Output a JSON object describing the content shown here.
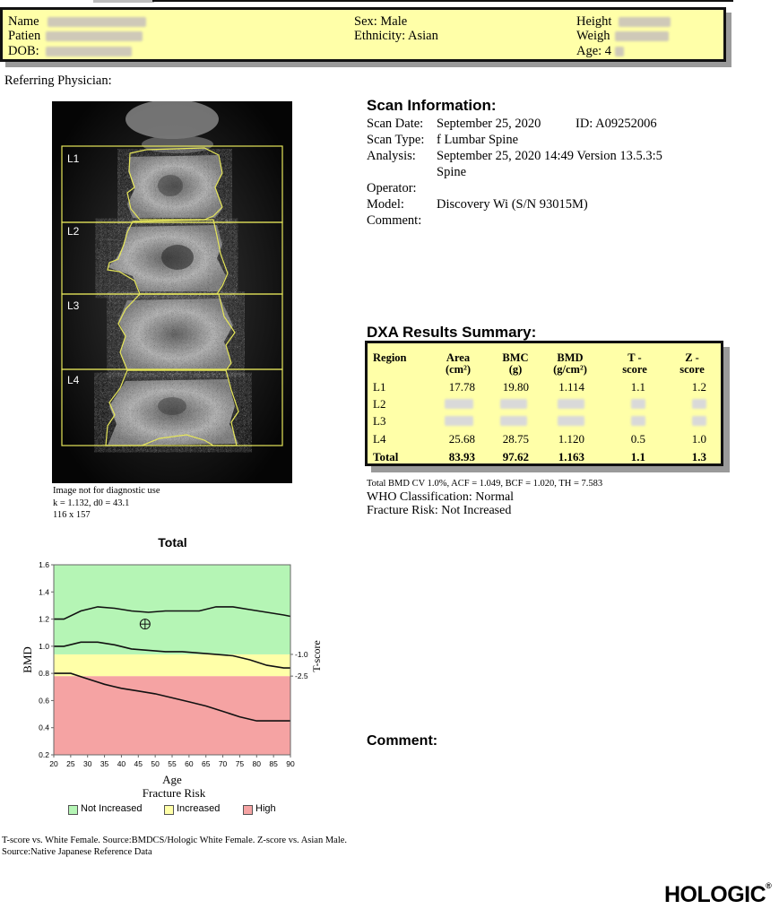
{
  "patient": {
    "name_label": "Name",
    "patient_id_label": "Patien",
    "dob_label": "DOB:",
    "sex": "Sex: Male",
    "ethnicity": "Ethnicity: Asian",
    "height_label": "Height",
    "weight_label": "Weigh",
    "age": "Age: 4"
  },
  "referring_physician": "Referring Physician:",
  "scan_image": {
    "regions": [
      "L1",
      "L2",
      "L3",
      "L4"
    ],
    "note_lines": [
      "Image not for diagnostic use",
      "k = 1.132, d0 = 43.1",
      "116 x 157"
    ]
  },
  "scan_info": {
    "title": "Scan Information:",
    "rows": [
      {
        "label": "Scan Date:",
        "value": "September 25, 2020",
        "extra": "ID:  A09252006"
      },
      {
        "label": "Scan Type:",
        "value": "f Lumbar Spine"
      },
      {
        "label": "Analysis:",
        "value": "September 25, 2020 14:49 Version 13.5.3:5"
      },
      {
        "label": "",
        "value": "Spine"
      },
      {
        "label": "Operator:",
        "value": ""
      },
      {
        "label": "Model:",
        "value": "Discovery Wi (S/N 93015M)"
      },
      {
        "label": "Comment:",
        "value": ""
      }
    ]
  },
  "dxa": {
    "title": "DXA Results Summary:",
    "headers": [
      {
        "l1": "Region",
        "l2": ""
      },
      {
        "l1": "Area",
        "l2": "(cm²)"
      },
      {
        "l1": "BMC",
        "l2": "(g)"
      },
      {
        "l1": "BMD",
        "l2": "(g/cm²)"
      },
      {
        "l1": "T -",
        "l2": "score"
      },
      {
        "l1": "Z -",
        "l2": "score"
      }
    ],
    "rows": [
      {
        "region": "L1",
        "area": "17.78",
        "bmc": "19.80",
        "bmd": "1.114",
        "t": "1.1",
        "z": "1.2"
      },
      {
        "region": "L2",
        "area": "",
        "bmc": "",
        "bmd": "",
        "t": "",
        "z": ""
      },
      {
        "region": "L3",
        "area": "",
        "bmc": "",
        "bmd": "",
        "t": "",
        "z": ""
      },
      {
        "region": "L4",
        "area": "25.68",
        "bmc": "28.75",
        "bmd": "1.120",
        "t": "0.5",
        "z": "1.0"
      },
      {
        "region": "Total",
        "area": "83.93",
        "bmc": "97.62",
        "bmd": "1.163",
        "t": "1.1",
        "z": "1.3"
      }
    ],
    "cv_line": "Total BMD CV 1.0%, ACF = 1.049, BCF = 1.020, TH = 7.583",
    "who": "WHO Classification: Normal",
    "fracture_risk": "Fracture Risk: Not Increased"
  },
  "chart_data": {
    "type": "line",
    "title": "Total",
    "xlabel": "Age",
    "x_sublabel": "Fracture Risk",
    "ylabel": "BMD",
    "y2label": "T-score",
    "xlim": [
      20,
      90
    ],
    "ylim": [
      0.2,
      1.6
    ],
    "x_ticks": [
      "20",
      "25",
      "30",
      "35",
      "40",
      "45",
      "50",
      "55",
      "60",
      "65",
      "70",
      "75",
      "80",
      "85",
      "90"
    ],
    "y_ticks": [
      "0.2",
      "0.4",
      "0.6",
      "0.8",
      "1.0",
      "1.2",
      "1.4",
      "1.6"
    ],
    "y2_ticks": [
      {
        "label": "-1.0",
        "bmd": 0.94
      },
      {
        "label": "-2.5",
        "bmd": 0.78
      }
    ],
    "bands": [
      {
        "name": "High",
        "from": 0.2,
        "to": 0.78,
        "color": "#f5a3a3"
      },
      {
        "name": "Increased",
        "from": 0.78,
        "to": 0.94,
        "color": "#ffffa8"
      },
      {
        "name": "Not Increased",
        "from": 0.94,
        "to": 1.6,
        "color": "#b5f5b5"
      }
    ],
    "series": [
      {
        "x": [
          20,
          23,
          28,
          33,
          38,
          43,
          48,
          53,
          58,
          63,
          68,
          73,
          78,
          83,
          88,
          90
        ],
        "values": [
          1.2,
          1.2,
          1.26,
          1.29,
          1.28,
          1.26,
          1.25,
          1.26,
          1.26,
          1.26,
          1.29,
          1.29,
          1.27,
          1.25,
          1.23,
          1.22
        ]
      },
      {
        "x": [
          20,
          23,
          28,
          33,
          38,
          43,
          48,
          53,
          58,
          63,
          68,
          73,
          78,
          83,
          88,
          90
        ],
        "values": [
          1.0,
          1.0,
          1.03,
          1.03,
          1.01,
          0.98,
          0.97,
          0.96,
          0.96,
          0.95,
          0.94,
          0.93,
          0.9,
          0.86,
          0.84,
          0.84
        ]
      },
      {
        "x": [
          20,
          25,
          30,
          35,
          40,
          45,
          50,
          55,
          60,
          65,
          70,
          75,
          80,
          85,
          90
        ],
        "values": [
          0.8,
          0.8,
          0.76,
          0.72,
          0.69,
          0.67,
          0.65,
          0.62,
          0.59,
          0.56,
          0.52,
          0.48,
          0.45,
          0.45,
          0.45
        ]
      }
    ],
    "patient_point": {
      "x": 47,
      "y": 1.163
    },
    "legend": [
      {
        "label": "Not Increased",
        "color": "#b5f5b5"
      },
      {
        "label": "Increased",
        "color": "#ffffa8"
      },
      {
        "label": "High",
        "color": "#f5a3a3"
      }
    ]
  },
  "comment_title": "Comment:",
  "footnote_lines": [
    "T-score vs. White Female. Source:BMDCS/Hologic White Female. Z-score vs. Asian Male.",
    "Source:Native Japanese Reference Data"
  ],
  "logo": {
    "text": "HOLOGIC",
    "mark": "®"
  }
}
